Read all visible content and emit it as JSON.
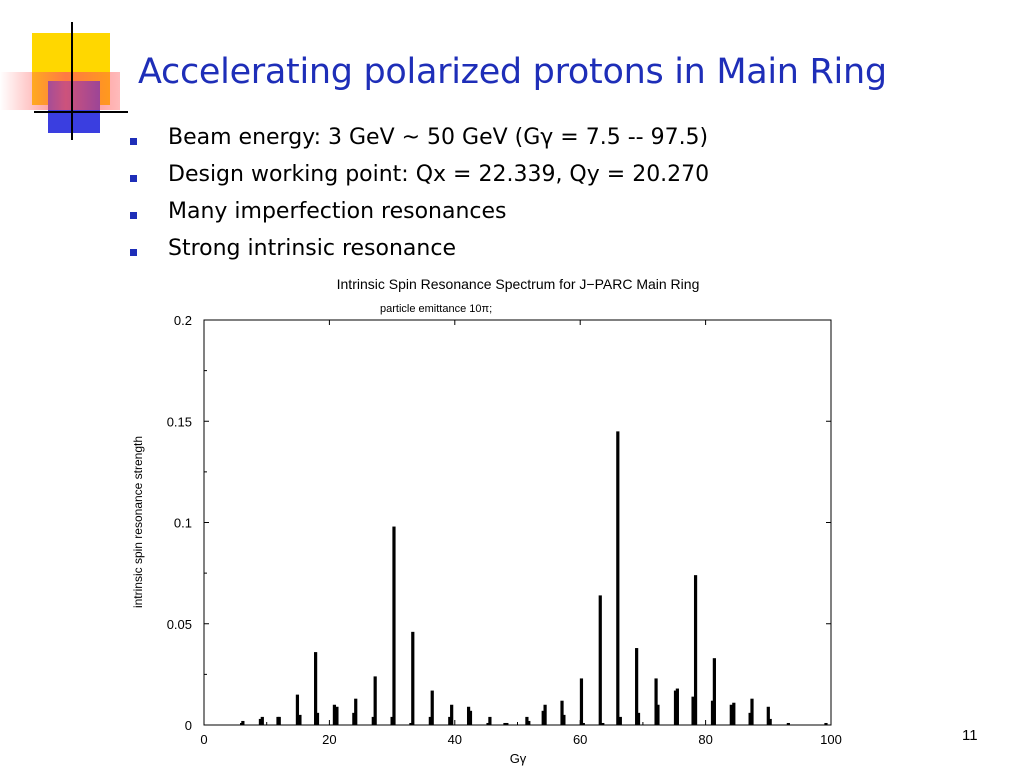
{
  "slide": {
    "title": "Accelerating polarized protons in Main Ring",
    "bullets": [
      "Beam energy: 3 GeV ~ 50 GeV (Gγ = 7.5 -- 97.5)",
      "Design working point: Qx = 22.339, Qy = 20.270",
      "Many imperfection resonances",
      "Strong intrinsic resonance"
    ],
    "page_number": "11",
    "colors": {
      "title": "#1e2eb8",
      "bullet_marker": "#1e2eb8",
      "deco_yellow": "#ffd700",
      "deco_blue": "#3a3ee0",
      "deco_red": "#ff4a4a"
    }
  },
  "chart_data": {
    "type": "bar",
    "title": "Intrinsic Spin Resonance Spectrum for J−PARC Main Ring",
    "subtitle": "particle emittance 10π;",
    "xlabel": "Gγ",
    "ylabel": "intrinsic spin resonance strength",
    "xlim": [
      0,
      100
    ],
    "ylim": [
      0,
      0.2
    ],
    "xticks": [
      "0",
      "20",
      "40",
      "60",
      "80",
      "100"
    ],
    "yticks": [
      "0",
      "0.05",
      "0.1",
      "0.15",
      "0.2"
    ],
    "grid": false,
    "x": [
      6,
      6.2,
      9,
      9.3,
      11.8,
      12,
      14.9,
      15.3,
      17.8,
      18.1,
      20.8,
      21.2,
      23.9,
      24.2,
      27,
      27.3,
      30,
      30.3,
      33,
      33.3,
      36.1,
      36.4,
      39.2,
      39.5,
      42.2,
      42.5,
      45.3,
      45.6,
      48,
      48.3,
      51.5,
      51.8,
      54.1,
      54.4,
      57.1,
      57.4,
      60.2,
      60.5,
      63.2,
      63.6,
      66,
      66.4,
      69,
      69.3,
      72.1,
      72.4,
      75.2,
      75.5,
      78,
      78.4,
      81.1,
      81.4,
      84.1,
      84.5,
      87.1,
      87.4,
      90,
      90.3,
      93.2,
      99.2
    ],
    "values": [
      0.001,
      0.002,
      0.003,
      0.004,
      0.004,
      0.004,
      0.015,
      0.005,
      0.036,
      0.006,
      0.01,
      0.009,
      0.006,
      0.013,
      0.004,
      0.024,
      0.004,
      0.098,
      0.001,
      0.046,
      0.004,
      0.017,
      0.004,
      0.01,
      0.009,
      0.007,
      0.001,
      0.004,
      0.001,
      0.001,
      0.004,
      0.002,
      0.007,
      0.01,
      0.012,
      0.005,
      0.023,
      0.001,
      0.064,
      0.001,
      0.145,
      0.004,
      0.038,
      0.006,
      0.023,
      0.01,
      0.017,
      0.018,
      0.014,
      0.074,
      0.012,
      0.033,
      0.01,
      0.011,
      0.006,
      0.013,
      0.009,
      0.003,
      0.001,
      0.001
    ]
  }
}
